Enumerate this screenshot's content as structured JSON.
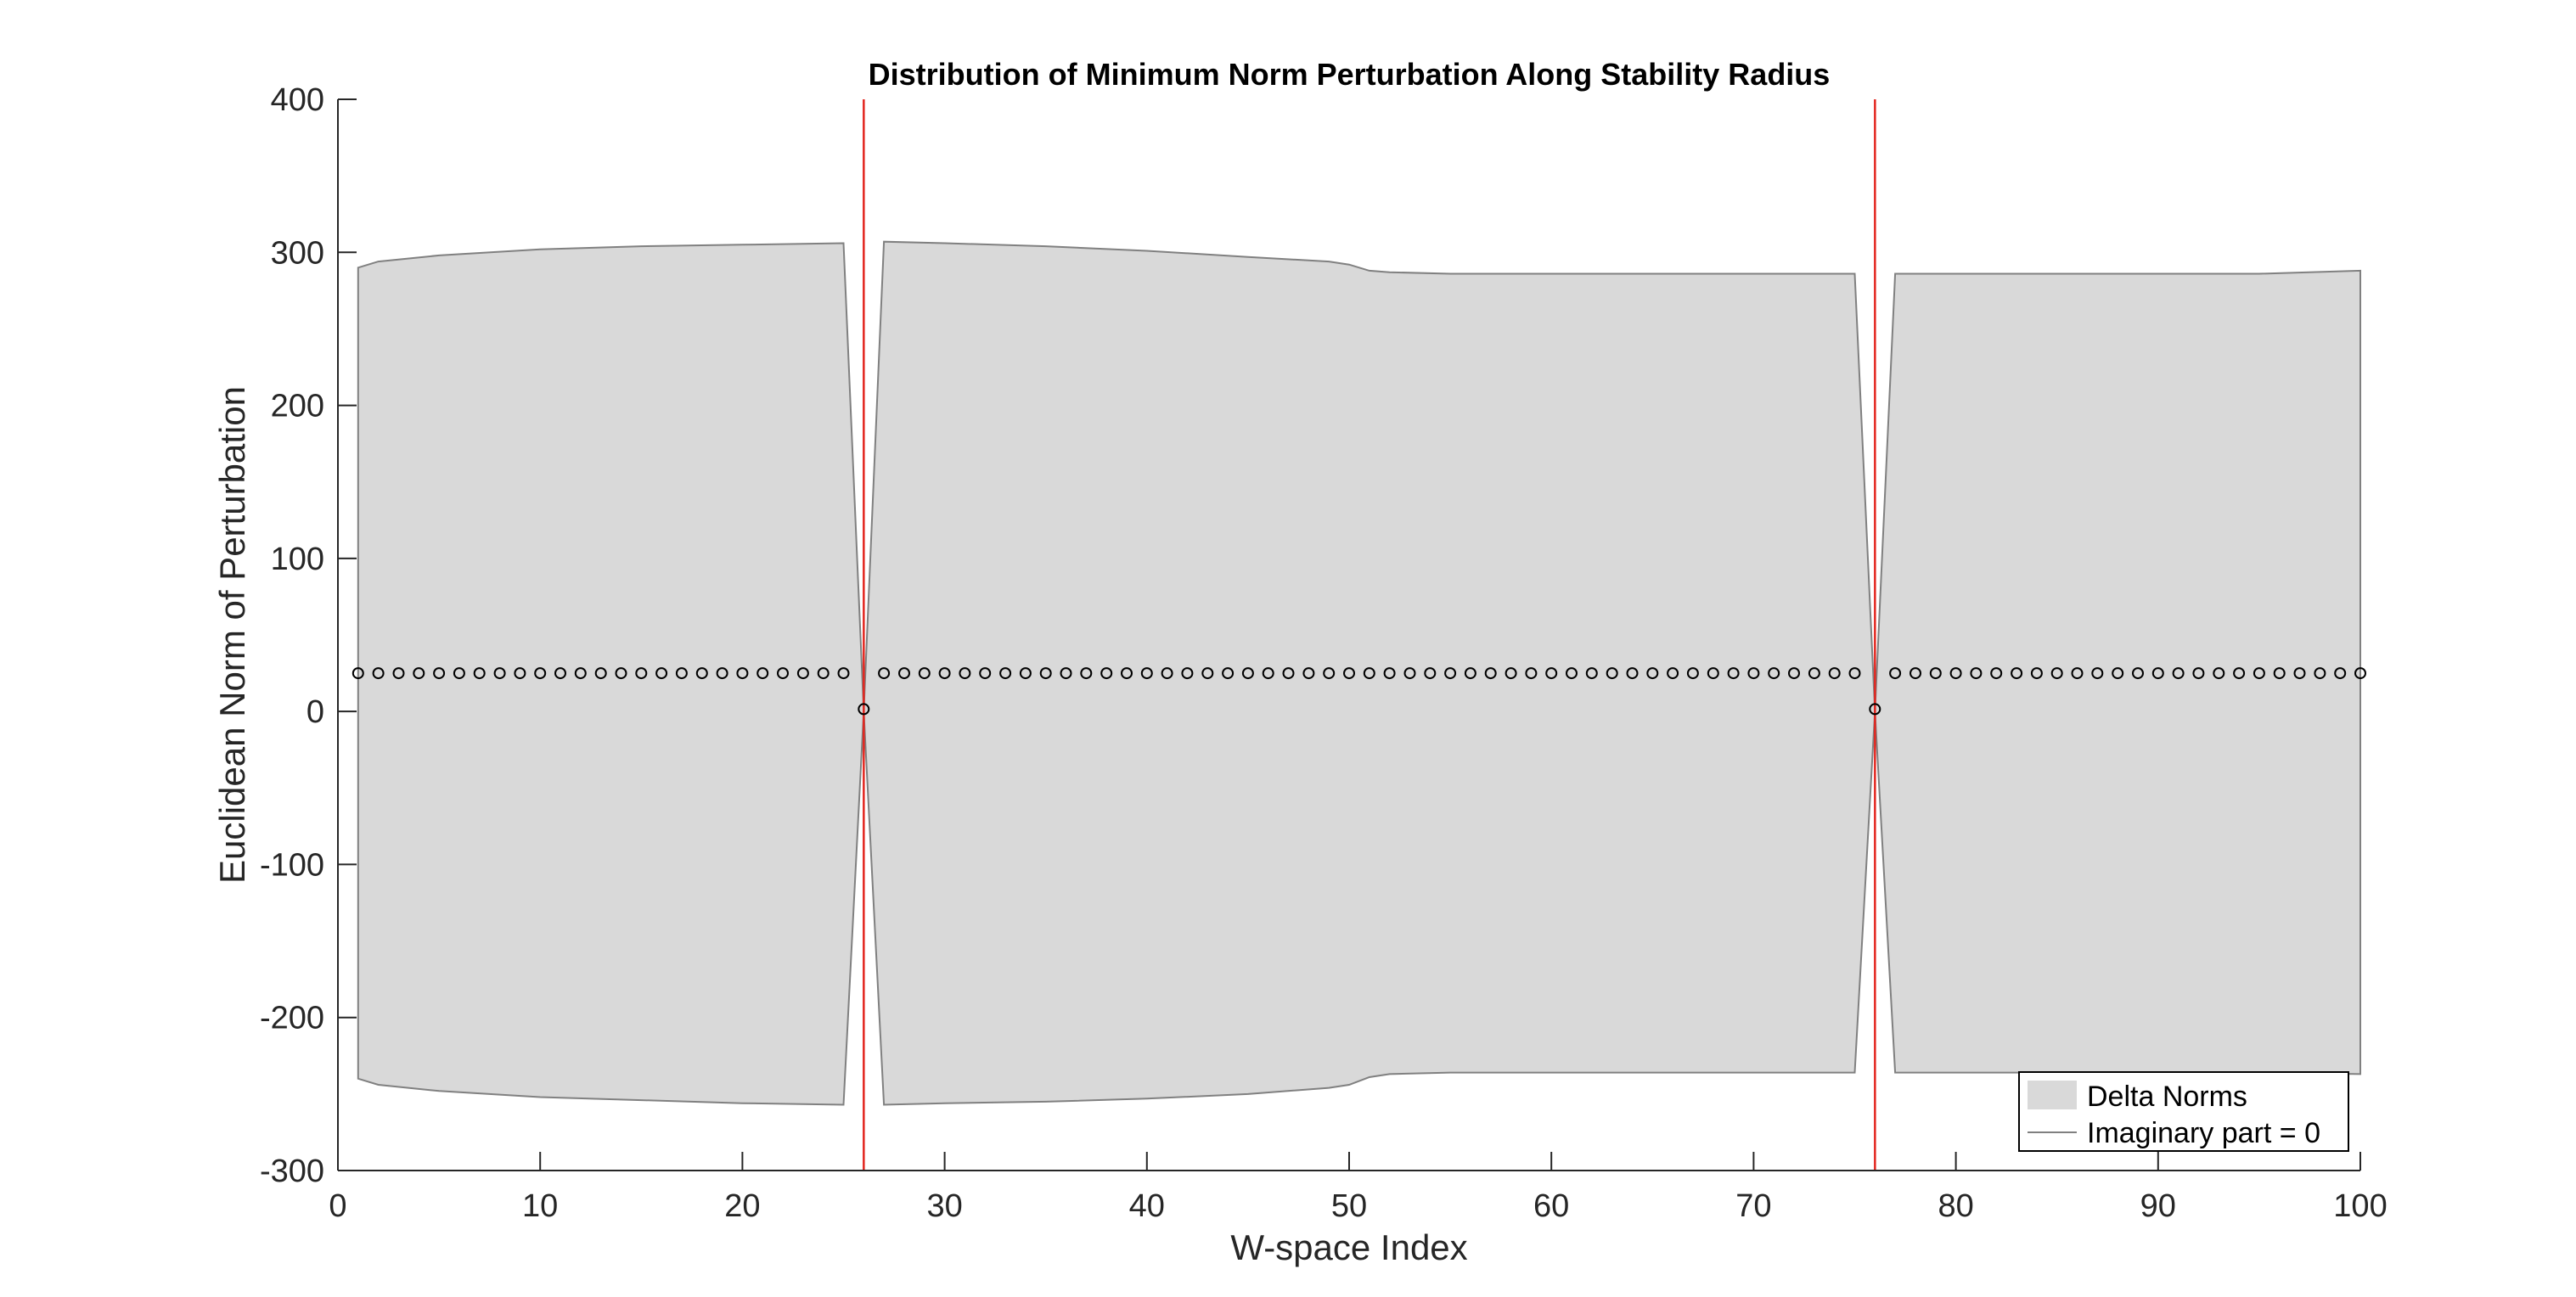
{
  "chart_data": {
    "type": "area",
    "title": "Distribution of Minimum Norm Perturbation Along Stability Radius",
    "xlabel": "W-space Index",
    "ylabel": "Euclidean Norm of Perturbation",
    "xlim": [
      0,
      100
    ],
    "ylim": [
      -300,
      400
    ],
    "xticks": [
      0,
      10,
      20,
      30,
      40,
      50,
      60,
      70,
      80,
      90,
      100
    ],
    "yticks": [
      -300,
      -200,
      -100,
      0,
      100,
      200,
      300,
      400
    ],
    "grid": false,
    "legend_position": "bottom-right",
    "legend": [
      {
        "label": "Delta Norms",
        "kind": "patch"
      },
      {
        "label": "Imaginary part = 0",
        "kind": "line"
      }
    ],
    "colors": {
      "fill": "#d9d9d9",
      "fill_edge": "#808080",
      "vertical_lines": "#e3261f",
      "markers": "#000000",
      "axes": "#262626"
    },
    "vertical_lines_x": [
      26,
      76
    ],
    "band": {
      "x": [
        1,
        2,
        5,
        10,
        15,
        20,
        25,
        26,
        27,
        30,
        35,
        40,
        45,
        49,
        50,
        51,
        52,
        55,
        60,
        65,
        70,
        75,
        76,
        77,
        80,
        85,
        90,
        95,
        100
      ],
      "upper": [
        290,
        294,
        298,
        302,
        304,
        305,
        306,
        0,
        307,
        306,
        304,
        301,
        297,
        294,
        292,
        288,
        287,
        286,
        286,
        286,
        286,
        286,
        0,
        286,
        286,
        286,
        286,
        286,
        288
      ],
      "lower": [
        -240,
        -244,
        -248,
        -252,
        -254,
        -256,
        -257,
        0,
        -257,
        -256,
        -255,
        -253,
        -250,
        -246,
        -244,
        -239,
        -237,
        -236,
        -236,
        -236,
        -236,
        -236,
        0,
        -236,
        -236,
        -236,
        -236,
        -236,
        -237
      ]
    },
    "markers": {
      "shape": "circle-open",
      "x_start": 1,
      "x_end": 100,
      "y_default": 25,
      "exceptions": [
        {
          "x": 26,
          "y": 1.5
        },
        {
          "x": 76,
          "y": 1.5
        }
      ]
    }
  }
}
